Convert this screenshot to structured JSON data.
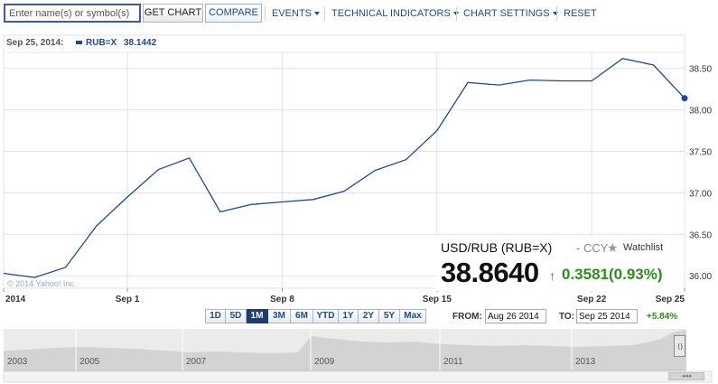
{
  "toolbar": {
    "search_placeholder": "Enter name(s) or symbol(s)",
    "get_chart": "GET CHART",
    "compare": "COMPARE",
    "events": "EVENTS",
    "technical_indicators": "TECHNICAL INDICATORS",
    "chart_settings": "CHART SETTINGS",
    "reset": "RESET"
  },
  "hover": {
    "date": "Sep 25, 2014:",
    "label": "RUB=X",
    "value": "38.1442"
  },
  "copyright": "© 2014 Yahoo! Inc.",
  "quote": {
    "name": "USD/RUB (RUB=X)",
    "ccy": "- CCY",
    "watchlist": "Watchlist",
    "price": "38.8640",
    "change": "0.3581(0.93%)"
  },
  "range_buttons": [
    "1D",
    "5D",
    "1M",
    "3M",
    "6M",
    "YTD",
    "1Y",
    "2Y",
    "5Y",
    "Max"
  ],
  "active_range": "1M",
  "from_label": "FROM:",
  "from_value": "Aug 26 2014",
  "to_label": "TO:",
  "to_value": "Sep 25 2014",
  "pct_change": "+5.84%",
  "navigator_years": [
    "2003",
    "2005",
    "2007",
    "2009",
    "2011",
    "2013"
  ],
  "colors": {
    "line": "#1f4a8c",
    "up": "#2e8b20",
    "grid": "#dde3ec"
  },
  "chart_data": {
    "type": "line",
    "series": [
      {
        "name": "RUB=X",
        "x": [
          "Aug 26",
          "Aug 27",
          "Aug 28",
          "Aug 29",
          "Sep 1",
          "Sep 2",
          "Sep 3",
          "Sep 4",
          "Sep 5",
          "Sep 8",
          "Sep 9",
          "Sep 10",
          "Sep 11",
          "Sep 12",
          "Sep 15",
          "Sep 16",
          "Sep 17",
          "Sep 18",
          "Sep 19",
          "Sep 22",
          "Sep 23",
          "Sep 24",
          "Sep 25"
        ],
        "values": [
          36.03,
          35.98,
          36.1,
          36.6,
          36.95,
          37.28,
          37.42,
          36.77,
          36.86,
          36.89,
          36.92,
          37.02,
          37.27,
          37.4,
          37.75,
          38.33,
          38.3,
          38.36,
          38.35,
          38.35,
          38.62,
          38.54,
          38.14
        ]
      }
    ],
    "x_tick_labels": [
      "2014",
      "Sep 1",
      "Sep 8",
      "Sep 15",
      "Sep 22",
      "Sep 25"
    ],
    "x_tick_index": [
      0,
      4,
      9,
      14,
      19,
      22
    ],
    "y_ticks": [
      36.0,
      36.5,
      37.0,
      37.5,
      38.0,
      38.5
    ],
    "y_tick_labels": [
      "36.00",
      "36.50",
      "37.00",
      "37.50",
      "38.00",
      "38.50"
    ],
    "ylim": [
      35.85,
      38.9
    ],
    "grid": true,
    "y_axis_position": "right"
  }
}
